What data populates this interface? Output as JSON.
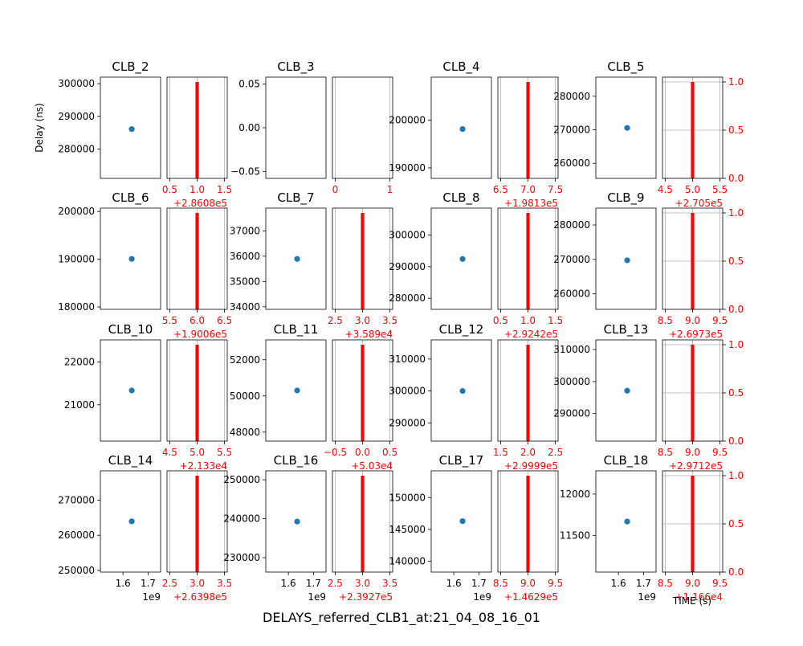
{
  "figure": {
    "suptitle": "DELAYS_referred_CLB1_at:21_04_08_16_01",
    "ylabel": "Delay (ns)",
    "right_xlabel": "TIME (s)",
    "left_x_offset": "1e9",
    "colors": {
      "scatter": "#1f77b4",
      "hist": "#ff0000",
      "twin_axis": "#ff0000",
      "grid": "#b0b0b0",
      "axis": "#000000"
    }
  },
  "chart_data": [
    {
      "type": "scatter",
      "panel": "CLB_2",
      "title": "CLB_2",
      "x": [
        1.635
      ],
      "y": [
        286080
      ],
      "ylim": [
        271000,
        302000
      ],
      "yticks": [
        280000,
        290000,
        300000
      ],
      "ytick_labels": [
        "280000",
        "290000",
        "300000"
      ],
      "xlim": [
        1.51,
        1.75
      ],
      "xticks": [
        1.6,
        1.7
      ],
      "xtick_labels": [
        "1.6",
        "1.7"
      ],
      "show_xticks": false,
      "hist": {
        "value": 1.0,
        "count": 1,
        "xlim": [
          0.45,
          1.55
        ],
        "xticks": [
          0.5,
          1.0,
          1.5
        ],
        "xtick_labels": [
          "0.5",
          "1.0",
          "1.5"
        ],
        "offset": "+2.8608e5",
        "show_right_ticks": false
      }
    },
    {
      "type": "scatter",
      "panel": "CLB_3",
      "title": "CLB_3",
      "x": [],
      "y": [],
      "ylim": [
        -0.058,
        0.058
      ],
      "yticks": [
        -0.05,
        0.0,
        0.05
      ],
      "ytick_labels": [
        "−0.05",
        "0.00",
        "0.05"
      ],
      "xlim": [
        1.51,
        1.75
      ],
      "xticks": [
        1.6,
        1.7
      ],
      "xtick_labels": [
        "1.6",
        "1.7"
      ],
      "show_xticks": false,
      "hist": {
        "value": null,
        "count": 0,
        "xlim": [
          -0.05,
          1.05
        ],
        "xticks": [
          0,
          1
        ],
        "xtick_labels": [
          "0",
          "1"
        ],
        "offset": "",
        "show_right_ticks": false
      }
    },
    {
      "type": "scatter",
      "panel": "CLB_4",
      "title": "CLB_4",
      "x": [
        1.635
      ],
      "y": [
        198130
      ],
      "ylim": [
        187800,
        209000
      ],
      "yticks": [
        190000,
        200000
      ],
      "ytick_labels": [
        "190000",
        "200000"
      ],
      "xlim": [
        1.51,
        1.75
      ],
      "xticks": [
        1.6,
        1.7
      ],
      "xtick_labels": [
        "1.6",
        "1.7"
      ],
      "show_xticks": false,
      "hist": {
        "value": 7.0,
        "count": 1,
        "xlim": [
          6.45,
          7.55
        ],
        "xticks": [
          6.5,
          7.0,
          7.5
        ],
        "xtick_labels": [
          "6.5",
          "7.0",
          "7.5"
        ],
        "offset": "+1.9813e5",
        "show_right_ticks": false
      }
    },
    {
      "type": "scatter",
      "panel": "CLB_5",
      "title": "CLB_5",
      "x": [
        1.635
      ],
      "y": [
        270550
      ],
      "ylim": [
        255500,
        285700
      ],
      "yticks": [
        260000,
        270000,
        280000
      ],
      "ytick_labels": [
        "260000",
        "270000",
        "280000"
      ],
      "xlim": [
        1.51,
        1.75
      ],
      "xticks": [
        1.6,
        1.7
      ],
      "xtick_labels": [
        "1.6",
        "1.7"
      ],
      "show_xticks": false,
      "hist": {
        "value": 5.0,
        "count": 1,
        "xlim": [
          4.45,
          5.55
        ],
        "xticks": [
          4.5,
          5.0,
          5.5
        ],
        "xtick_labels": [
          "4.5",
          "5.0",
          "5.5"
        ],
        "offset": "+2.705e5",
        "show_right_ticks": true
      }
    },
    {
      "type": "scatter",
      "panel": "CLB_6",
      "title": "CLB_6",
      "x": [
        1.635
      ],
      "y": [
        190066
      ],
      "ylim": [
        179500,
        200700
      ],
      "yticks": [
        180000,
        190000,
        200000
      ],
      "ytick_labels": [
        "180000",
        "190000",
        "200000"
      ],
      "xlim": [
        1.51,
        1.75
      ],
      "xticks": [
        1.6,
        1.7
      ],
      "xtick_labels": [
        "1.6",
        "1.7"
      ],
      "show_xticks": false,
      "hist": {
        "value": 6.0,
        "count": 1,
        "xlim": [
          5.45,
          6.55
        ],
        "xticks": [
          5.5,
          6.0,
          6.5
        ],
        "xtick_labels": [
          "5.5",
          "6.0",
          "6.5"
        ],
        "offset": "+1.9006e5",
        "show_right_ticks": false
      }
    },
    {
      "type": "scatter",
      "panel": "CLB_7",
      "title": "CLB_7",
      "x": [
        1.635
      ],
      "y": [
        35893
      ],
      "ylim": [
        33900,
        37900
      ],
      "yticks": [
        34000,
        35000,
        36000,
        37000
      ],
      "ytick_labels": [
        "34000",
        "35000",
        "36000",
        "37000"
      ],
      "xlim": [
        1.51,
        1.75
      ],
      "xticks": [
        1.6,
        1.7
      ],
      "xtick_labels": [
        "1.6",
        "1.7"
      ],
      "show_xticks": false,
      "hist": {
        "value": 3.0,
        "count": 1,
        "xlim": [
          2.45,
          3.55
        ],
        "xticks": [
          2.5,
          3.0,
          3.5
        ],
        "xtick_labels": [
          "2.5",
          "3.0",
          "3.5"
        ],
        "offset": "+3.589e4",
        "show_right_ticks": false
      }
    },
    {
      "type": "scatter",
      "panel": "CLB_8",
      "title": "CLB_8",
      "x": [
        1.635
      ],
      "y": [
        292421
      ],
      "ylim": [
        276500,
        308500
      ],
      "yticks": [
        280000,
        290000,
        300000
      ],
      "ytick_labels": [
        "280000",
        "290000",
        "300000"
      ],
      "xlim": [
        1.51,
        1.75
      ],
      "xticks": [
        1.6,
        1.7
      ],
      "xtick_labels": [
        "1.6",
        "1.7"
      ],
      "show_xticks": false,
      "hist": {
        "value": 1.0,
        "count": 1,
        "xlim": [
          0.45,
          1.55
        ],
        "xticks": [
          0.5,
          1.0,
          1.5
        ],
        "xtick_labels": [
          "0.5",
          "1.0",
          "1.5"
        ],
        "offset": "+2.9242e5",
        "show_right_ticks": false
      }
    },
    {
      "type": "scatter",
      "panel": "CLB_9",
      "title": "CLB_9",
      "x": [
        1.635
      ],
      "y": [
        269739
      ],
      "ylim": [
        255500,
        284900
      ],
      "yticks": [
        260000,
        270000,
        280000
      ],
      "ytick_labels": [
        "260000",
        "270000",
        "280000"
      ],
      "xlim": [
        1.51,
        1.75
      ],
      "xticks": [
        1.6,
        1.7
      ],
      "xtick_labels": [
        "1.6",
        "1.7"
      ],
      "show_xticks": false,
      "hist": {
        "value": 9.0,
        "count": 1,
        "xlim": [
          8.45,
          9.55
        ],
        "xticks": [
          8.5,
          9.0,
          9.5
        ],
        "xtick_labels": [
          "8.5",
          "9.0",
          "9.5"
        ],
        "offset": "+2.6973e5",
        "show_right_ticks": true
      }
    },
    {
      "type": "scatter",
      "panel": "CLB_10",
      "title": "CLB_10",
      "x": [
        1.635
      ],
      "y": [
        21335
      ],
      "ylim": [
        20150,
        22520
      ],
      "yticks": [
        21000,
        22000
      ],
      "ytick_labels": [
        "21000",
        "22000"
      ],
      "xlim": [
        1.51,
        1.75
      ],
      "xticks": [
        1.6,
        1.7
      ],
      "xtick_labels": [
        "1.6",
        "1.7"
      ],
      "show_xticks": false,
      "hist": {
        "value": 5.0,
        "count": 1,
        "xlim": [
          4.45,
          5.55
        ],
        "xticks": [
          4.5,
          5.0,
          5.5
        ],
        "xtick_labels": [
          "4.5",
          "5.0",
          "5.5"
        ],
        "offset": "+2.133e4",
        "show_right_ticks": false
      }
    },
    {
      "type": "scatter",
      "panel": "CLB_11",
      "title": "CLB_11",
      "x": [
        1.635
      ],
      "y": [
        50300
      ],
      "ylim": [
        47500,
        53100
      ],
      "yticks": [
        48000,
        50000,
        52000
      ],
      "ytick_labels": [
        "48000",
        "50000",
        "52000"
      ],
      "xlim": [
        1.51,
        1.75
      ],
      "xticks": [
        1.6,
        1.7
      ],
      "xtick_labels": [
        "1.6",
        "1.7"
      ],
      "show_xticks": false,
      "hist": {
        "value": 0.0,
        "count": 1,
        "xlim": [
          -0.55,
          0.55
        ],
        "xticks": [
          -0.5,
          0.0,
          0.5
        ],
        "xtick_labels": [
          "−0.5",
          "0.0",
          "0.5"
        ],
        "offset": "+5.03e4",
        "show_right_ticks": false
      }
    },
    {
      "type": "scatter",
      "panel": "CLB_12",
      "title": "CLB_12",
      "x": [
        1.635
      ],
      "y": [
        299992
      ],
      "ylim": [
        284300,
        316000
      ],
      "yticks": [
        290000,
        300000,
        310000
      ],
      "ytick_labels": [
        "290000",
        "300000",
        "310000"
      ],
      "xlim": [
        1.51,
        1.75
      ],
      "xticks": [
        1.6,
        1.7
      ],
      "xtick_labels": [
        "1.6",
        "1.7"
      ],
      "show_xticks": false,
      "hist": {
        "value": 2.0,
        "count": 1,
        "xlim": [
          1.45,
          2.55
        ],
        "xticks": [
          1.5,
          2.0,
          2.5
        ],
        "xtick_labels": [
          "1.5",
          "2.0",
          "2.5"
        ],
        "offset": "+2.9999e5",
        "show_right_ticks": false
      }
    },
    {
      "type": "scatter",
      "panel": "CLB_13",
      "title": "CLB_13",
      "x": [
        1.635
      ],
      "y": [
        297129
      ],
      "ylim": [
        281400,
        313000
      ],
      "yticks": [
        290000,
        300000,
        310000
      ],
      "ytick_labels": [
        "290000",
        "300000",
        "310000"
      ],
      "xlim": [
        1.51,
        1.75
      ],
      "xticks": [
        1.6,
        1.7
      ],
      "xtick_labels": [
        "1.6",
        "1.7"
      ],
      "show_xticks": false,
      "hist": {
        "value": 9.0,
        "count": 1,
        "xlim": [
          8.45,
          9.55
        ],
        "xticks": [
          8.5,
          9.0,
          9.5
        ],
        "xtick_labels": [
          "8.5",
          "9.0",
          "9.5"
        ],
        "offset": "+2.9712e5",
        "show_right_ticks": true
      }
    },
    {
      "type": "scatter",
      "panel": "CLB_14",
      "title": "CLB_14",
      "x": [
        1.635
      ],
      "y": [
        263983
      ],
      "ylim": [
        249500,
        278400
      ],
      "yticks": [
        250000,
        260000,
        270000
      ],
      "ytick_labels": [
        "250000",
        "260000",
        "270000"
      ],
      "xlim": [
        1.51,
        1.75
      ],
      "xticks": [
        1.6,
        1.7
      ],
      "xtick_labels": [
        "1.6",
        "1.7"
      ],
      "show_xticks": true,
      "x_offset": "1e9",
      "hist": {
        "value": 3.0,
        "count": 1,
        "xlim": [
          2.45,
          3.55
        ],
        "xticks": [
          2.5,
          3.0,
          3.5
        ],
        "xtick_labels": [
          "2.5",
          "3.0",
          "3.5"
        ],
        "offset": "+2.6398e5",
        "show_right_ticks": false
      }
    },
    {
      "type": "scatter",
      "panel": "CLB_16",
      "title": "CLB_16",
      "x": [
        1.635
      ],
      "y": [
        239273
      ],
      "ylim": [
        226300,
        252300
      ],
      "yticks": [
        230000,
        240000,
        250000
      ],
      "ytick_labels": [
        "230000",
        "240000",
        "250000"
      ],
      "xlim": [
        1.51,
        1.75
      ],
      "xticks": [
        1.6,
        1.7
      ],
      "xtick_labels": [
        "1.6",
        "1.7"
      ],
      "show_xticks": true,
      "x_offset": "1e9",
      "hist": {
        "value": 3.0,
        "count": 1,
        "xlim": [
          2.45,
          3.55
        ],
        "xticks": [
          2.5,
          3.0,
          3.5
        ],
        "xtick_labels": [
          "2.5",
          "3.0",
          "3.5"
        ],
        "offset": "+2.3927e5",
        "show_right_ticks": false
      }
    },
    {
      "type": "scatter",
      "panel": "CLB_17",
      "title": "CLB_17",
      "x": [
        1.635
      ],
      "y": [
        146299
      ],
      "ylim": [
        138300,
        154200
      ],
      "yticks": [
        140000,
        145000,
        150000
      ],
      "ytick_labels": [
        "140000",
        "145000",
        "150000"
      ],
      "xlim": [
        1.51,
        1.75
      ],
      "xticks": [
        1.6,
        1.7
      ],
      "xtick_labels": [
        "1.6",
        "1.7"
      ],
      "show_xticks": true,
      "x_offset": "1e9",
      "hist": {
        "value": 9.0,
        "count": 1,
        "xlim": [
          8.45,
          9.55
        ],
        "xticks": [
          8.5,
          9.0,
          9.5
        ],
        "xtick_labels": [
          "8.5",
          "9.0",
          "9.5"
        ],
        "offset": "+1.4629e5",
        "show_right_ticks": false
      }
    },
    {
      "type": "scatter",
      "panel": "CLB_18",
      "title": "CLB_18",
      "x": [
        1.635
      ],
      "y": [
        11669
      ],
      "ylim": [
        11060,
        12280
      ],
      "yticks": [
        11500,
        12000
      ],
      "ytick_labels": [
        "11500",
        "12000"
      ],
      "xlim": [
        1.51,
        1.75
      ],
      "xticks": [
        1.6,
        1.7
      ],
      "xtick_labels": [
        "1.6",
        "1.7"
      ],
      "show_xticks": true,
      "x_offset": "1e9",
      "hist": {
        "value": 9.0,
        "count": 1,
        "xlim": [
          8.45,
          9.55
        ],
        "xticks": [
          8.5,
          9.0,
          9.5
        ],
        "xtick_labels": [
          "8.5",
          "9.0",
          "9.5"
        ],
        "offset": "+1.166e4",
        "show_right_ticks": true
      }
    }
  ]
}
